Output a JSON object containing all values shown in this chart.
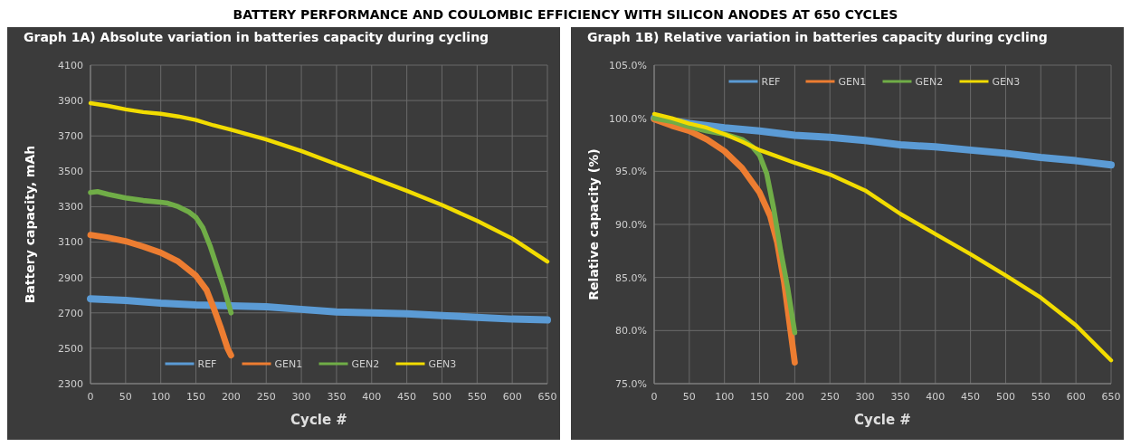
{
  "chart_data": [
    {
      "type": "other",
      "title": "BATTERY PERFORMANCE AND COULOMBIC EFFICIENCY WITH SILICON ANODES AT 650 CYCLES"
    },
    {
      "type": "line",
      "title": "Graph 1A)  Absolute variation in batteries capacity during cycling",
      "xlabel": "Cycle #",
      "ylabel": "Battery capacity, mAh",
      "xlim": [
        0,
        650
      ],
      "xticks": [
        0,
        50,
        100,
        150,
        200,
        250,
        300,
        350,
        400,
        450,
        500,
        550,
        600,
        650
      ],
      "ylim": [
        2300,
        4100
      ],
      "yticks": [
        2300,
        2500,
        2700,
        2900,
        3100,
        3300,
        3500,
        3700,
        3900,
        4100
      ],
      "grid": true,
      "legend": "bottom",
      "marker": "none",
      "line_style": "solid",
      "series": [
        {
          "name": "REF",
          "color": "#5b9bd5",
          "x": [
            0,
            50,
            100,
            150,
            200,
            250,
            300,
            350,
            400,
            450,
            500,
            550,
            600,
            650
          ],
          "values": [
            2780,
            2770,
            2755,
            2745,
            2740,
            2735,
            2720,
            2705,
            2700,
            2695,
            2685,
            2675,
            2665,
            2660
          ]
        },
        {
          "name": "GEN1",
          "color": "#ed7d31",
          "x": [
            0,
            25,
            50,
            75,
            100,
            125,
            150,
            165,
            175,
            185,
            195,
            200
          ],
          "values": [
            3140,
            3125,
            3105,
            3075,
            3040,
            2990,
            2910,
            2830,
            2730,
            2620,
            2500,
            2460
          ]
        },
        {
          "name": "GEN2",
          "color": "#70ad47",
          "x": [
            0,
            10,
            25,
            50,
            75,
            100,
            110,
            125,
            140,
            150,
            160,
            170,
            180,
            190,
            200
          ],
          "values": [
            3380,
            3385,
            3370,
            3350,
            3335,
            3325,
            3320,
            3300,
            3270,
            3240,
            3180,
            3080,
            2960,
            2840,
            2700
          ]
        },
        {
          "name": "GEN3",
          "color": "#f2dc00",
          "x": [
            0,
            25,
            50,
            75,
            100,
            125,
            150,
            175,
            200,
            250,
            300,
            350,
            400,
            450,
            500,
            550,
            600,
            650
          ],
          "values": [
            3885,
            3870,
            3850,
            3835,
            3825,
            3810,
            3790,
            3760,
            3735,
            3680,
            3615,
            3540,
            3465,
            3390,
            3310,
            3220,
            3120,
            2990
          ]
        }
      ]
    },
    {
      "type": "line",
      "title": "Graph 1B)  Relative variation in batteries capacity during cycling",
      "xlabel": "Cycle #",
      "ylabel": "Relative capacity (%)",
      "xlim": [
        0,
        650
      ],
      "xticks": [
        0,
        50,
        100,
        150,
        200,
        250,
        300,
        350,
        400,
        450,
        500,
        550,
        600,
        650
      ],
      "ylim": [
        75,
        105
      ],
      "yticks": [
        {
          "value": 75,
          "label": "75.0%"
        },
        {
          "value": 80,
          "label": "80.0%"
        },
        {
          "value": 85,
          "label": "85.0%"
        },
        {
          "value": 90,
          "label": "90.0%"
        },
        {
          "value": 95,
          "label": "95.0%"
        },
        {
          "value": 100,
          "label": "100.0%"
        },
        {
          "value": 105,
          "label": "105.0%"
        }
      ],
      "grid": true,
      "legend": "top",
      "marker": "none",
      "line_style": "solid",
      "series": [
        {
          "name": "REF",
          "color": "#5b9bd5",
          "x": [
            0,
            50,
            100,
            150,
            200,
            250,
            300,
            350,
            400,
            450,
            500,
            550,
            600,
            650
          ],
          "values": [
            100,
            99.5,
            99.1,
            98.8,
            98.4,
            98.2,
            97.9,
            97.5,
            97.3,
            97.0,
            96.7,
            96.3,
            96.0,
            95.6
          ]
        },
        {
          "name": "GEN1",
          "color": "#ed7d31",
          "x": [
            0,
            25,
            50,
            75,
            100,
            125,
            150,
            165,
            175,
            185,
            195,
            200
          ],
          "values": [
            99.9,
            99.3,
            98.8,
            98.0,
            96.9,
            95.3,
            93.0,
            90.8,
            88.3,
            84.5,
            79.5,
            77.0
          ]
        },
        {
          "name": "GEN2",
          "color": "#70ad47",
          "x": [
            0,
            25,
            50,
            75,
            100,
            125,
            140,
            150,
            160,
            170,
            180,
            190,
            200
          ],
          "values": [
            100,
            99.7,
            99.2,
            98.8,
            98.5,
            98.0,
            97.3,
            96.5,
            94.8,
            91.5,
            87.5,
            84,
            79.8
          ]
        },
        {
          "name": "GEN3",
          "color": "#f2dc00",
          "x": [
            0,
            25,
            50,
            75,
            100,
            125,
            150,
            175,
            200,
            250,
            300,
            350,
            400,
            450,
            500,
            550,
            600,
            650
          ],
          "values": [
            100.4,
            100.0,
            99.5,
            99.1,
            98.5,
            97.8,
            97.0,
            96.4,
            95.8,
            94.7,
            93.2,
            91.0,
            89.1,
            87.2,
            85.2,
            83.1,
            80.5,
            77.2
          ]
        }
      ]
    }
  ]
}
